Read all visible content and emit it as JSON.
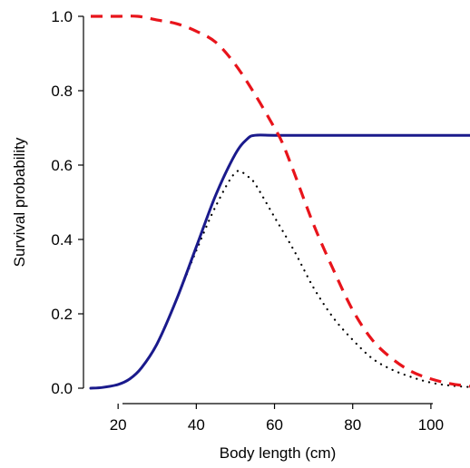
{
  "chart_data": {
    "type": "line",
    "title": "",
    "xlabel": "Body length (cm)",
    "ylabel": "Survival probability",
    "xlim": [
      13,
      110
    ],
    "ylim": [
      0,
      1
    ],
    "x_ticks": [
      "20",
      "40",
      "60",
      "80",
      "100"
    ],
    "x_tick_values": [
      20,
      40,
      60,
      80,
      100
    ],
    "y_ticks": [
      "0.0",
      "0.2",
      "0.4",
      "0.6",
      "0.8",
      "1.0"
    ],
    "y_tick_values": [
      0,
      0.2,
      0.4,
      0.6,
      0.8,
      1.0
    ],
    "grid": false,
    "legend": "none",
    "series": [
      {
        "style": "dashed",
        "color": "#e8141b",
        "x": [
          13,
          16,
          20,
          25,
          30,
          35,
          40,
          45,
          50,
          55,
          60,
          62,
          65,
          70,
          75,
          80,
          85,
          90,
          95,
          100,
          105,
          110
        ],
        "y": [
          1.0,
          1.0,
          1.0,
          1.0,
          0.99,
          0.98,
          0.96,
          0.93,
          0.87,
          0.79,
          0.7,
          0.66,
          0.58,
          0.44,
          0.32,
          0.21,
          0.13,
          0.08,
          0.045,
          0.025,
          0.012,
          0.005
        ]
      },
      {
        "style": "solid",
        "color": "#1a1a8c",
        "x": [
          13,
          16,
          20,
          23,
          26,
          30,
          35,
          40,
          45,
          50,
          53,
          55,
          60,
          70,
          80,
          90,
          100,
          110
        ],
        "y": [
          0.0,
          0.002,
          0.01,
          0.025,
          0.055,
          0.12,
          0.24,
          0.38,
          0.52,
          0.63,
          0.67,
          0.68,
          0.68,
          0.68,
          0.68,
          0.68,
          0.68,
          0.68
        ]
      },
      {
        "style": "dotted",
        "color": "#000000",
        "x": [
          13,
          16,
          20,
          23,
          26,
          30,
          35,
          40,
          45,
          50,
          53,
          55,
          60,
          65,
          70,
          75,
          80,
          85,
          90,
          95,
          100,
          105,
          110
        ],
        "y": [
          0.0,
          0.002,
          0.01,
          0.025,
          0.055,
          0.12,
          0.24,
          0.37,
          0.49,
          0.58,
          0.57,
          0.55,
          0.46,
          0.37,
          0.27,
          0.19,
          0.13,
          0.08,
          0.05,
          0.03,
          0.015,
          0.007,
          0.003
        ]
      }
    ]
  }
}
